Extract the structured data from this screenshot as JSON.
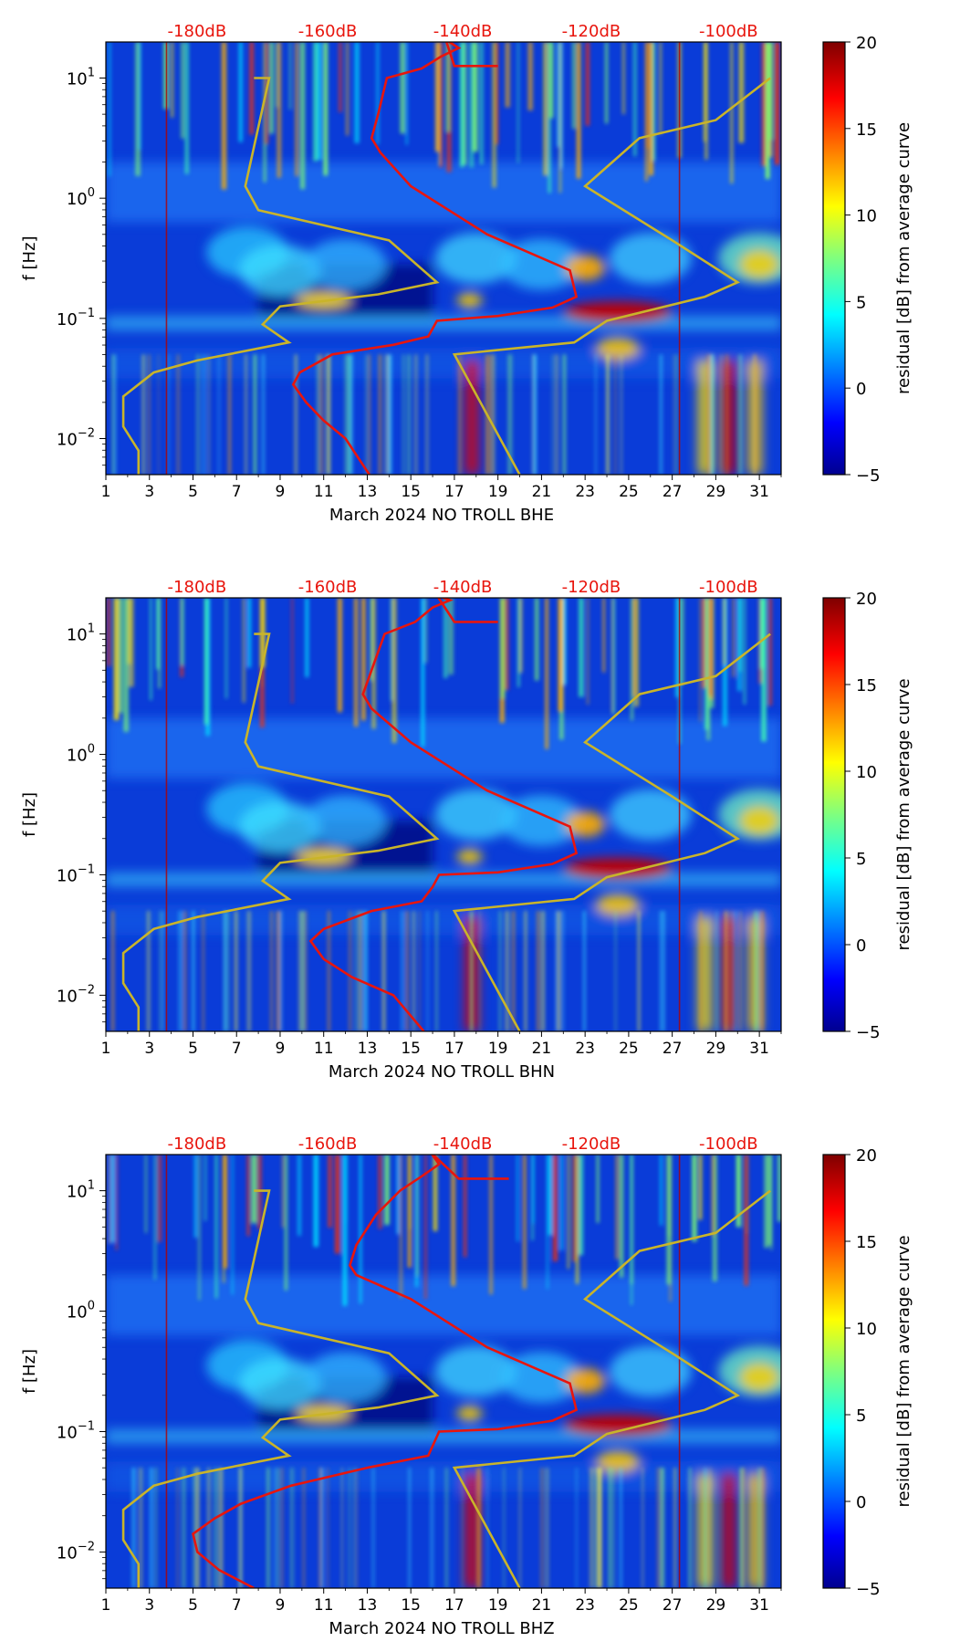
{
  "colors": {
    "psd_curve": "#e8150d",
    "noise_model": "#c9b42a",
    "db_labels": "#e8150d",
    "colormap": "jet"
  },
  "chart_data": [
    {
      "type": "heatmap",
      "title": "",
      "xlabel": "March 2024 NO TROLL  BHE",
      "ylabel": "f [Hz]",
      "x_ticks": [
        "1",
        "3",
        "5",
        "7",
        "9",
        "11",
        "13",
        "15",
        "17",
        "19",
        "21",
        "23",
        "25",
        "27",
        "29",
        "31"
      ],
      "y_ticks": [
        "10^-2",
        "10^-1",
        "10^0",
        "10^1"
      ],
      "xlim": [
        1,
        32
      ],
      "ylim_log10": [
        -2.3,
        1.3
      ],
      "top_db_labels": [
        "-180dB",
        "-160dB",
        "-140dB",
        "-120dB",
        "-100dB"
      ],
      "colorbar": {
        "label": "residual [dB] from average curve",
        "range": [
          -5,
          20
        ],
        "ticks": [
          "20",
          "15",
          "10",
          "5",
          "0",
          "−5"
        ]
      },
      "psd_curve": [
        [
          13.1,
          -2.3
        ],
        [
          12.0,
          -2.0
        ],
        [
          11.0,
          -1.85
        ],
        [
          10.2,
          -1.7
        ],
        [
          9.6,
          -1.55
        ],
        [
          9.9,
          -1.45
        ],
        [
          11.4,
          -1.3
        ],
        [
          14.2,
          -1.22
        ],
        [
          15.8,
          -1.15
        ],
        [
          16.2,
          -1.02
        ],
        [
          19.0,
          -0.98
        ],
        [
          21.5,
          -0.91
        ],
        [
          22.6,
          -0.82
        ],
        [
          22.3,
          -0.6
        ],
        [
          18.5,
          -0.3
        ],
        [
          15.0,
          0.1
        ],
        [
          13.6,
          0.38
        ],
        [
          13.2,
          0.5
        ],
        [
          13.5,
          0.7
        ],
        [
          13.9,
          1.0
        ],
        [
          15.5,
          1.08
        ],
        [
          16.4,
          1.18
        ],
        [
          17.2,
          1.25
        ],
        [
          16.6,
          1.32
        ],
        [
          17.0,
          1.1
        ],
        [
          19.0,
          1.1
        ]
      ],
      "noise_models": [
        [
          [
            2.5,
            -2.3
          ],
          [
            2.5,
            -2.1
          ],
          [
            1.8,
            -1.9
          ],
          [
            1.8,
            -1.65
          ],
          [
            3.2,
            -1.45
          ],
          [
            5.2,
            -1.35
          ],
          [
            9.4,
            -1.2
          ],
          [
            8.2,
            -1.05
          ],
          [
            9.0,
            -0.9
          ],
          [
            13.5,
            -0.8
          ],
          [
            16.2,
            -0.7
          ],
          [
            14.0,
            -0.35
          ],
          [
            8.0,
            -0.1
          ],
          [
            7.4,
            0.1
          ],
          [
            8.5,
            1.0
          ],
          [
            7.8,
            1.0
          ]
        ],
        [
          [
            20.0,
            -2.3
          ],
          [
            17.0,
            -1.3
          ],
          [
            22.5,
            -1.2
          ],
          [
            24.0,
            -1.02
          ],
          [
            28.5,
            -0.82
          ],
          [
            30.0,
            -0.7
          ],
          [
            27.0,
            -0.35
          ],
          [
            23.0,
            0.1
          ],
          [
            25.5,
            0.5
          ],
          [
            29.0,
            0.65
          ],
          [
            31.5,
            1.0
          ]
        ]
      ]
    },
    {
      "type": "heatmap",
      "title": "",
      "xlabel": "March 2024 NO TROLL  BHN",
      "ylabel": "f [Hz]",
      "x_ticks": [
        "1",
        "3",
        "5",
        "7",
        "9",
        "11",
        "13",
        "15",
        "17",
        "19",
        "21",
        "23",
        "25",
        "27",
        "29",
        "31"
      ],
      "y_ticks": [
        "10^-2",
        "10^-1",
        "10^0",
        "10^1"
      ],
      "xlim": [
        1,
        32
      ],
      "ylim_log10": [
        -2.3,
        1.3
      ],
      "top_db_labels": [
        "-180dB",
        "-160dB",
        "-140dB",
        "-120dB",
        "-100dB"
      ],
      "colorbar": {
        "label": "residual [dB] from average curve",
        "range": [
          -5,
          20
        ],
        "ticks": [
          "20",
          "15",
          "10",
          "5",
          "0",
          "−5"
        ]
      },
      "psd_curve": [
        [
          15.6,
          -2.3
        ],
        [
          14.2,
          -2.0
        ],
        [
          12.3,
          -1.85
        ],
        [
          11.0,
          -1.7
        ],
        [
          10.4,
          -1.55
        ],
        [
          11.0,
          -1.45
        ],
        [
          13.2,
          -1.3
        ],
        [
          15.5,
          -1.22
        ],
        [
          16.0,
          -1.1
        ],
        [
          16.3,
          -1.0
        ],
        [
          19.0,
          -0.98
        ],
        [
          21.5,
          -0.91
        ],
        [
          22.6,
          -0.82
        ],
        [
          22.3,
          -0.6
        ],
        [
          18.5,
          -0.3
        ],
        [
          15.0,
          0.1
        ],
        [
          13.2,
          0.38
        ],
        [
          12.8,
          0.5
        ],
        [
          13.2,
          0.7
        ],
        [
          13.8,
          1.0
        ],
        [
          15.2,
          1.1
        ],
        [
          16.0,
          1.22
        ],
        [
          16.8,
          1.28
        ],
        [
          16.2,
          1.32
        ],
        [
          17.0,
          1.1
        ],
        [
          19.0,
          1.1
        ]
      ],
      "noise_models": [
        [
          [
            2.5,
            -2.3
          ],
          [
            2.5,
            -2.1
          ],
          [
            1.8,
            -1.9
          ],
          [
            1.8,
            -1.65
          ],
          [
            3.2,
            -1.45
          ],
          [
            5.2,
            -1.35
          ],
          [
            9.4,
            -1.2
          ],
          [
            8.2,
            -1.05
          ],
          [
            9.0,
            -0.9
          ],
          [
            13.5,
            -0.8
          ],
          [
            16.2,
            -0.7
          ],
          [
            14.0,
            -0.35
          ],
          [
            8.0,
            -0.1
          ],
          [
            7.4,
            0.1
          ],
          [
            8.5,
            1.0
          ],
          [
            7.8,
            1.0
          ]
        ],
        [
          [
            20.0,
            -2.3
          ],
          [
            17.0,
            -1.3
          ],
          [
            22.5,
            -1.2
          ],
          [
            24.0,
            -1.02
          ],
          [
            28.5,
            -0.82
          ],
          [
            30.0,
            -0.7
          ],
          [
            27.0,
            -0.35
          ],
          [
            23.0,
            0.1
          ],
          [
            25.5,
            0.5
          ],
          [
            29.0,
            0.65
          ],
          [
            31.5,
            1.0
          ]
        ]
      ]
    },
    {
      "type": "heatmap",
      "title": "",
      "xlabel": "March 2024 NO TROLL  BHZ",
      "ylabel": "f [Hz]",
      "x_ticks": [
        "1",
        "3",
        "5",
        "7",
        "9",
        "11",
        "13",
        "15",
        "17",
        "19",
        "21",
        "23",
        "25",
        "27",
        "29",
        "31"
      ],
      "y_ticks": [
        "10^-2",
        "10^-1",
        "10^0",
        "10^1"
      ],
      "xlim": [
        1,
        32
      ],
      "ylim_log10": [
        -2.3,
        1.3
      ],
      "top_db_labels": [
        "-180dB",
        "-160dB",
        "-140dB",
        "-120dB",
        "-100dB"
      ],
      "colorbar": {
        "label": "residual [dB] from average curve",
        "range": [
          -5,
          20
        ],
        "ticks": [
          "20",
          "15",
          "10",
          "5",
          "0",
          "−5"
        ]
      },
      "psd_curve": [
        [
          7.8,
          -2.3
        ],
        [
          6.2,
          -2.15
        ],
        [
          5.2,
          -2.0
        ],
        [
          5.0,
          -1.85
        ],
        [
          6.0,
          -1.72
        ],
        [
          7.2,
          -1.6
        ],
        [
          9.5,
          -1.45
        ],
        [
          13.0,
          -1.3
        ],
        [
          15.8,
          -1.2
        ],
        [
          16.3,
          -1.0
        ],
        [
          19.0,
          -0.98
        ],
        [
          21.5,
          -0.91
        ],
        [
          22.6,
          -0.82
        ],
        [
          22.3,
          -0.6
        ],
        [
          18.5,
          -0.3
        ],
        [
          15.0,
          0.1
        ],
        [
          12.5,
          0.3
        ],
        [
          12.2,
          0.38
        ],
        [
          12.5,
          0.55
        ],
        [
          13.4,
          0.8
        ],
        [
          14.5,
          1.0
        ],
        [
          15.5,
          1.12
        ],
        [
          16.3,
          1.22
        ],
        [
          15.9,
          1.32
        ],
        [
          17.2,
          1.1
        ],
        [
          19.5,
          1.1
        ]
      ],
      "noise_models": [
        [
          [
            2.5,
            -2.3
          ],
          [
            2.5,
            -2.1
          ],
          [
            1.8,
            -1.9
          ],
          [
            1.8,
            -1.65
          ],
          [
            3.2,
            -1.45
          ],
          [
            5.2,
            -1.35
          ],
          [
            9.4,
            -1.2
          ],
          [
            8.2,
            -1.05
          ],
          [
            9.0,
            -0.9
          ],
          [
            13.5,
            -0.8
          ],
          [
            16.2,
            -0.7
          ],
          [
            14.0,
            -0.35
          ],
          [
            8.0,
            -0.1
          ],
          [
            7.4,
            0.1
          ],
          [
            8.5,
            1.0
          ],
          [
            7.8,
            1.0
          ]
        ],
        [
          [
            20.0,
            -2.3
          ],
          [
            17.0,
            -1.3
          ],
          [
            22.5,
            -1.2
          ],
          [
            24.0,
            -1.02
          ],
          [
            28.5,
            -0.82
          ],
          [
            30.0,
            -0.7
          ],
          [
            27.0,
            -0.35
          ],
          [
            23.0,
            0.1
          ],
          [
            25.5,
            0.5
          ],
          [
            29.0,
            0.65
          ],
          [
            31.5,
            1.0
          ]
        ]
      ]
    }
  ]
}
